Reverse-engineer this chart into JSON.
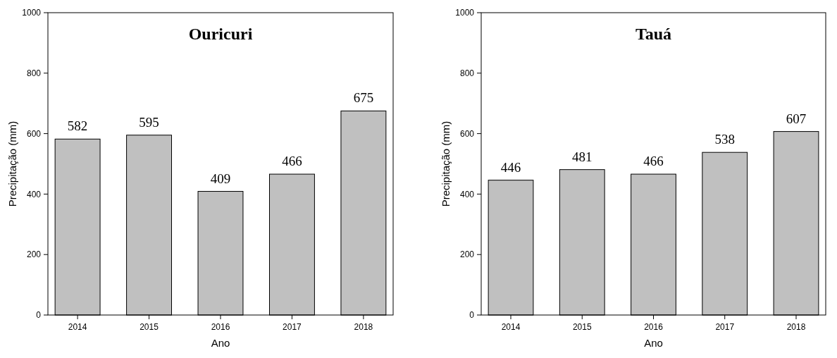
{
  "chart_data": [
    {
      "type": "bar",
      "title": "Ouricuri",
      "xlabel": "Ano",
      "ylabel": "Precipitação (mm)",
      "categories": [
        "2014",
        "2015",
        "2016",
        "2017",
        "2018"
      ],
      "values": [
        582,
        595,
        409,
        466,
        675
      ],
      "color": "#c0c0c0",
      "ylim": [
        0,
        1000
      ],
      "yticks": [
        0,
        200,
        400,
        600,
        800,
        1000
      ],
      "data_labels": true,
      "grid": false
    },
    {
      "type": "bar",
      "title": "Tauá",
      "xlabel": "Ano",
      "ylabel": "Precipitação (mm)",
      "categories": [
        "2014",
        "2015",
        "2016",
        "2017",
        "2018"
      ],
      "values": [
        446,
        481,
        466,
        538,
        607
      ],
      "color": "#c0c0c0",
      "ylim": [
        0,
        1000
      ],
      "yticks": [
        0,
        200,
        400,
        600,
        800,
        1000
      ],
      "data_labels": true,
      "grid": false
    }
  ]
}
